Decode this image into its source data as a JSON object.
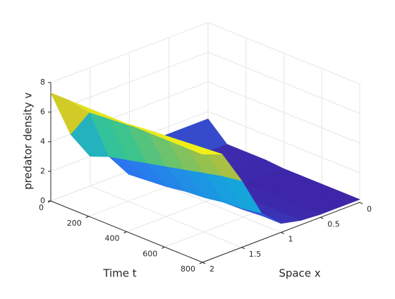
{
  "chart_data": {
    "type": "surface",
    "xlabel": "Time t",
    "ylabel": "Space x",
    "zlabel": "predator density v",
    "x": [
      0,
      100,
      200,
      300,
      400,
      500,
      600,
      700,
      800
    ],
    "y": [
      0,
      0.25,
      0.5,
      0.75,
      1,
      1.25,
      1.5,
      1.75,
      2
    ],
    "z": [
      [
        1.5,
        1.5,
        1.5,
        1.5,
        1.5,
        1.6,
        2.0,
        4.0,
        7.3
      ],
      [
        0.3,
        0.3,
        0.3,
        0.3,
        0.4,
        0.8,
        2.5,
        6.0,
        7.3
      ],
      [
        0.3,
        0.3,
        0.3,
        0.3,
        0.4,
        0.9,
        2.8,
        6.1,
        7.3
      ],
      [
        0.3,
        0.3,
        0.3,
        0.3,
        0.4,
        1.0,
        3.1,
        6.2,
        7.3
      ],
      [
        0.2,
        0.2,
        0.2,
        0.3,
        0.5,
        1.2,
        3.4,
        6.4,
        7.3
      ],
      [
        0.2,
        0.2,
        0.2,
        0.3,
        0.5,
        1.3,
        3.7,
        6.5,
        7.3
      ],
      [
        0.2,
        0.2,
        0.2,
        0.3,
        0.5,
        1.5,
        4.0,
        6.6,
        7.3
      ],
      [
        0.2,
        0.2,
        0.2,
        0.3,
        0.6,
        1.6,
        4.3,
        6.7,
        7.3
      ],
      [
        0.2,
        0.2,
        0.2,
        0.3,
        0.6,
        1.8,
        4.5,
        6.8,
        7.3
      ]
    ],
    "xlim": [
      0,
      800
    ],
    "xticks": [
      0,
      200,
      400,
      600,
      800
    ],
    "ylim": [
      0,
      2
    ],
    "yticks": [
      0,
      0.5,
      1,
      1.5,
      2
    ],
    "zlim": [
      0,
      8
    ],
    "zticks": [
      0,
      2,
      4,
      6,
      8
    ],
    "grid": true,
    "colormap": "parula"
  }
}
